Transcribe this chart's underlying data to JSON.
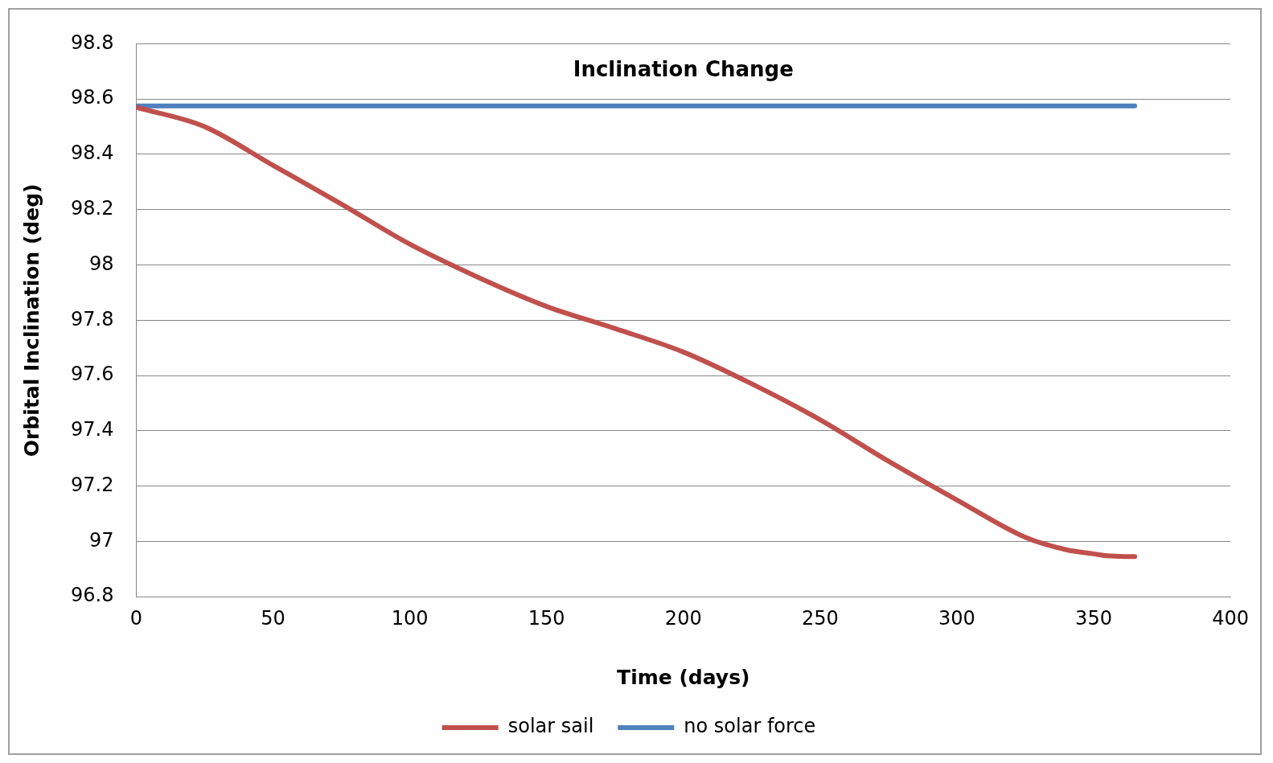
{
  "chart_data": {
    "type": "line",
    "title": "Inclination Change",
    "xlabel": "Time (days)",
    "ylabel": "Orbital Inclination (deg)",
    "x": [
      0,
      25,
      50,
      75,
      100,
      125,
      150,
      175,
      200,
      225,
      250,
      275,
      300,
      325,
      340,
      350,
      355,
      365
    ],
    "series": [
      {
        "name": "solar sail",
        "color": "#c0504d",
        "values": [
          98.57,
          98.5,
          98.36,
          98.22,
          98.075,
          97.955,
          97.85,
          97.77,
          97.685,
          97.57,
          97.44,
          97.29,
          97.15,
          97.015,
          96.97,
          96.955,
          96.948,
          96.945
        ]
      },
      {
        "name": "no solar force",
        "color": "#4f81bd",
        "x": [
          0,
          365
        ],
        "values": [
          98.575,
          98.575
        ]
      }
    ],
    "xlim": [
      0,
      400
    ],
    "xticks": [
      0,
      50,
      100,
      150,
      200,
      250,
      300,
      350,
      400
    ],
    "ylim": [
      96.8,
      98.8
    ],
    "yticks": [
      96.8,
      97,
      97.2,
      97.4,
      97.6,
      97.8,
      98,
      98.2,
      98.4,
      98.6,
      98.8
    ],
    "grid": "y",
    "legend": "bottom",
    "marker": "none",
    "line_style": "solid"
  }
}
